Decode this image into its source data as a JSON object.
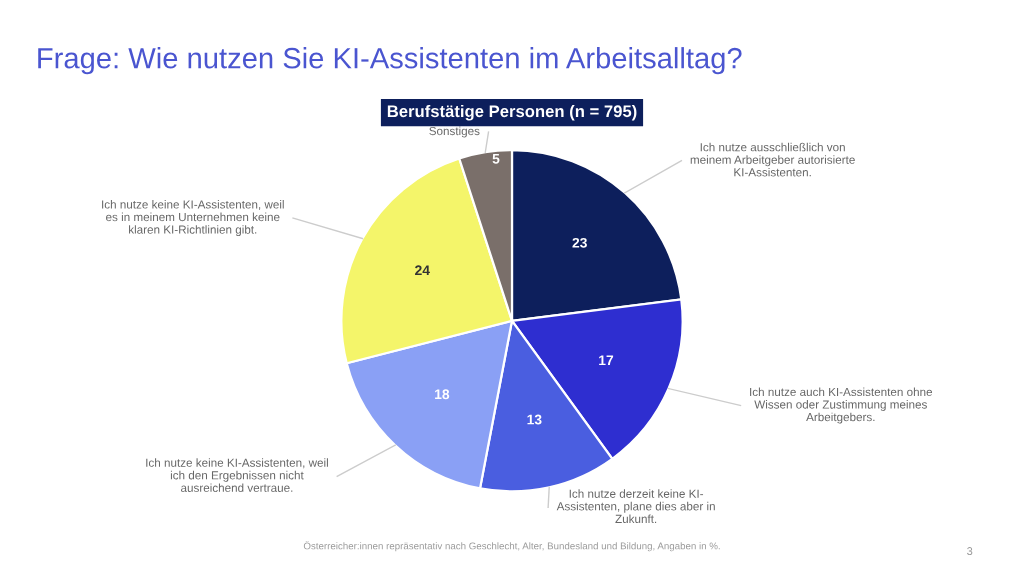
{
  "chart_data": {
    "type": "pie",
    "title": "Frage: Wie nutzen Sie KI-Assistenten im Arbeitsalltag?",
    "subtitle": "Berufstätige Personen (n = 795)",
    "categories": [
      "Ich nutze ausschließlich von\nmeinem Arbeitgeber autorisierte\nKI-Assistenten.",
      "Ich nutze auch KI-Assistenten ohne\nWissen oder Zustimmung meines\nArbeitgebers.",
      "Ich nutze derzeit keine KI-\nAssistenten, plane dies aber in\nZukunft.",
      "Ich nutze keine KI-Assistenten, weil\nich den Ergebnissen nicht\nausreichend vertraue.",
      "Ich nutze keine KI-Assistenten, weil\nes in meinem Unternehmen keine\nklaren KI-Richtlinien gibt.",
      "Sonstiges"
    ],
    "values": [
      23,
      17,
      13,
      18,
      24,
      5
    ],
    "colors": [
      "#0d1f5c",
      "#2e2ed0",
      "#4a5ee0",
      "#8aa0f5",
      "#f4f56a",
      "#7a6f6a"
    ],
    "data_labels": true,
    "annotations": [
      "Österreicher:innen repräsentativ nach Geschlecht, Alter, Bundesland und Bildung, Angaben in %.",
      "3"
    ]
  }
}
